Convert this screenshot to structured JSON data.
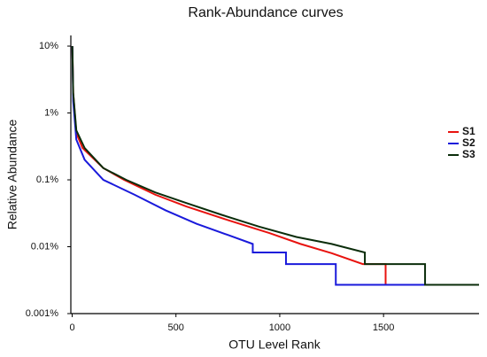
{
  "chart_data": {
    "type": "line",
    "title": "Rank-Abundance curves",
    "xlabel": "OTU Level Rank",
    "ylabel": "Relative Abundance",
    "log_y": true,
    "grid": false,
    "legend": "upper right",
    "xlim": [
      0,
      1960
    ],
    "xticks": [
      0,
      500,
      1000,
      1500
    ],
    "ylim": [
      0.001,
      14
    ],
    "yticks": [
      {
        "value": 0.001,
        "label": "0.001%"
      },
      {
        "value": 0.01,
        "label": "0.01%"
      },
      {
        "value": 0.1,
        "label": "0.1%"
      },
      {
        "value": 1,
        "label": "1%"
      },
      {
        "value": 10,
        "label": "10%"
      }
    ],
    "series": [
      {
        "name": "S1",
        "color": "#e8130f",
        "x": [
          1,
          5,
          20,
          50,
          150,
          250,
          400,
          550,
          750,
          950,
          1100,
          1250,
          1400,
          1510,
          1510,
          1960
        ],
        "values": [
          10,
          2,
          0.5,
          0.3,
          0.15,
          0.1,
          0.06,
          0.04,
          0.025,
          0.016,
          0.011,
          0.008,
          0.0055,
          0.0055,
          0.0027,
          0.0027
        ]
      },
      {
        "name": "S2",
        "color": "#1a1adb",
        "x": [
          1,
          5,
          20,
          60,
          150,
          300,
          450,
          600,
          750,
          870,
          870,
          1030,
          1030,
          1270,
          1270,
          1700
        ],
        "values": [
          10,
          1.5,
          0.4,
          0.2,
          0.1,
          0.06,
          0.035,
          0.022,
          0.015,
          0.011,
          0.0082,
          0.0082,
          0.0055,
          0.0055,
          0.0027,
          0.0027
        ]
      },
      {
        "name": "S3",
        "color": "#0b2d0b",
        "x": [
          1,
          5,
          20,
          60,
          150,
          260,
          400,
          550,
          720,
          900,
          1080,
          1250,
          1410,
          1410,
          1700,
          1700,
          1960
        ],
        "values": [
          10,
          2,
          0.55,
          0.3,
          0.15,
          0.1,
          0.065,
          0.045,
          0.03,
          0.02,
          0.014,
          0.011,
          0.0082,
          0.0055,
          0.0055,
          0.0027,
          0.0027
        ]
      }
    ]
  }
}
